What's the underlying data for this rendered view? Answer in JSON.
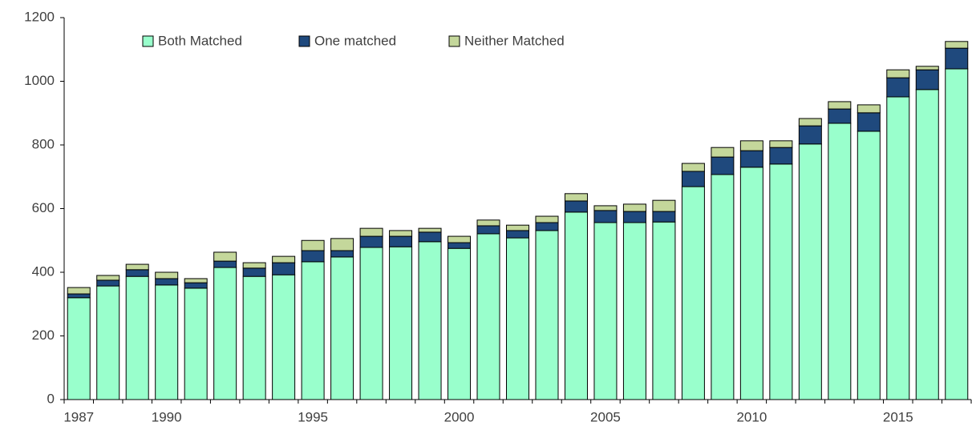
{
  "chart_data": {
    "type": "stacked_bar",
    "categories": [
      "1987",
      null,
      null,
      "1990",
      null,
      null,
      null,
      null,
      "1995",
      null,
      null,
      null,
      null,
      "2000",
      null,
      null,
      null,
      null,
      "2005",
      null,
      null,
      null,
      null,
      "2010",
      null,
      null,
      null,
      null,
      "2015",
      null,
      null
    ],
    "series": [
      {
        "name": "Both Matched",
        "color": "#99ffcc",
        "values": [
          320,
          357,
          387,
          360,
          350,
          415,
          387,
          392,
          433,
          448,
          478,
          480,
          496,
          475,
          521,
          508,
          531,
          589,
          556,
          556,
          558,
          669,
          707,
          730,
          740,
          803,
          868,
          843,
          951,
          974,
          1039
        ]
      },
      {
        "name": "One matched",
        "color": "#1f497d",
        "values": [
          12,
          18,
          21,
          20,
          17,
          20,
          26,
          38,
          35,
          20,
          35,
          33,
          30,
          18,
          25,
          23,
          25,
          35,
          38,
          35,
          33,
          48,
          55,
          52,
          52,
          57,
          45,
          58,
          60,
          62,
          65
        ]
      },
      {
        "name": "Neither Matched",
        "color": "#c4d79b",
        "values": [
          20,
          15,
          17,
          20,
          13,
          28,
          17,
          20,
          32,
          38,
          25,
          18,
          12,
          20,
          18,
          17,
          20,
          23,
          15,
          23,
          35,
          25,
          30,
          31,
          21,
          23,
          23,
          25,
          25,
          11,
          21
        ]
      }
    ],
    "ylim": [
      0,
      1200
    ],
    "yticks": [
      0,
      200,
      400,
      600,
      800,
      1000,
      1200
    ],
    "legend": "top-left"
  }
}
